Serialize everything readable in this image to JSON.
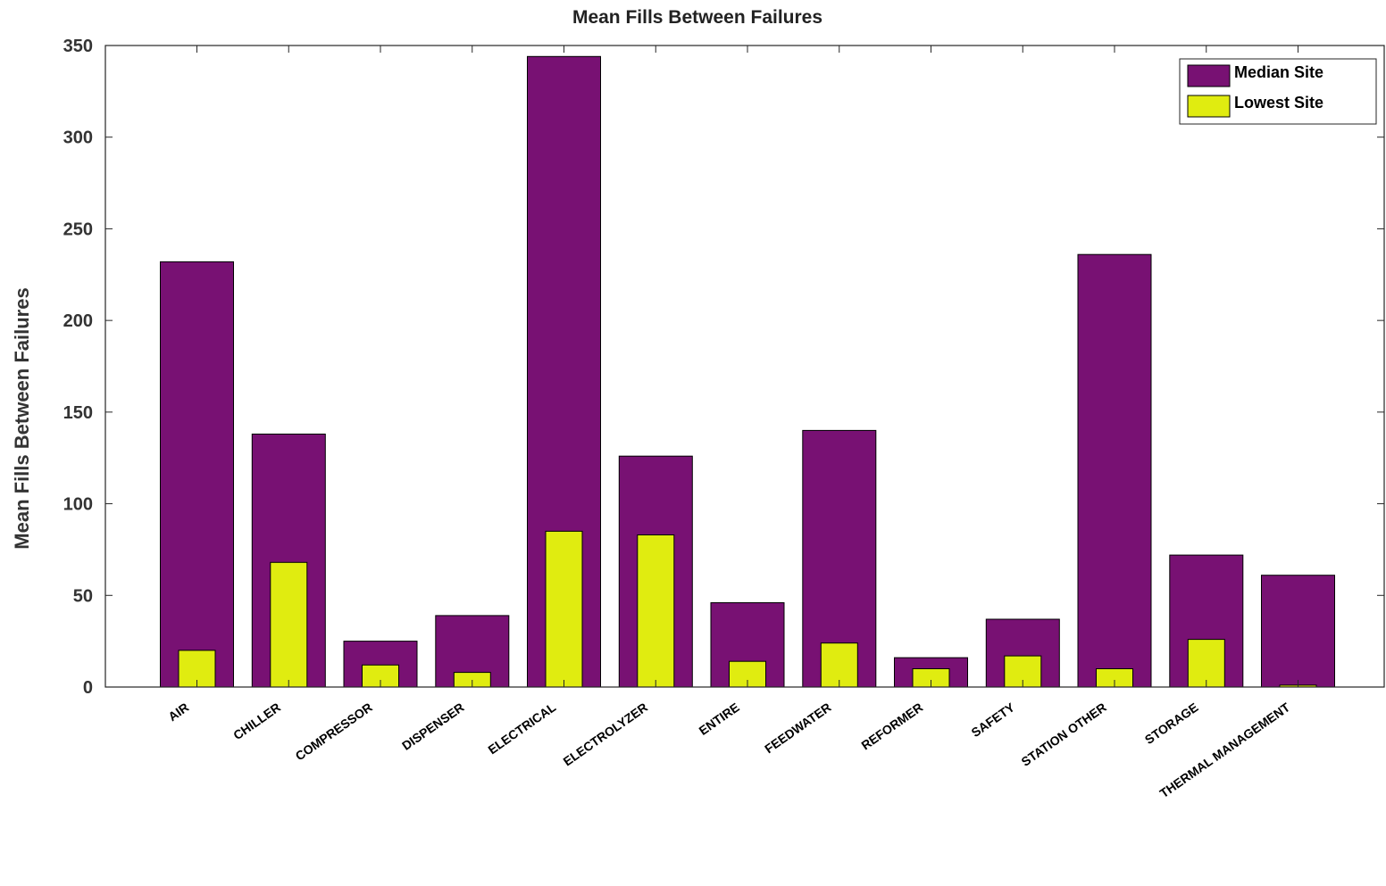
{
  "chart_data": {
    "type": "bar",
    "title": "Mean Fills Between Failures",
    "xlabel": "",
    "ylabel": "Mean Fills Between Failures",
    "ylim": [
      0,
      350
    ],
    "yticks": [
      0,
      50,
      100,
      150,
      200,
      250,
      300,
      350
    ],
    "grid": false,
    "legend_position": "top-right",
    "overlay": true,
    "categories": [
      "AIR",
      "CHILLER",
      "COMPRESSOR",
      "DISPENSER",
      "ELECTRICAL",
      "ELECTROLYZER",
      "ENTIRE",
      "FEEDWATER",
      "REFORMER",
      "SAFETY",
      "STATION OTHER",
      "STORAGE",
      "THERMAL MANAGEMENT"
    ],
    "series": [
      {
        "name": "Median Site",
        "color": "#781173",
        "values": [
          232,
          138,
          25,
          39,
          344,
          126,
          46,
          140,
          16,
          37,
          236,
          72,
          61
        ]
      },
      {
        "name": "Lowest Site",
        "color": "#e0ec10",
        "values": [
          20,
          68,
          12,
          8,
          85,
          83,
          14,
          24,
          10,
          17,
          10,
          26,
          1
        ]
      }
    ]
  }
}
